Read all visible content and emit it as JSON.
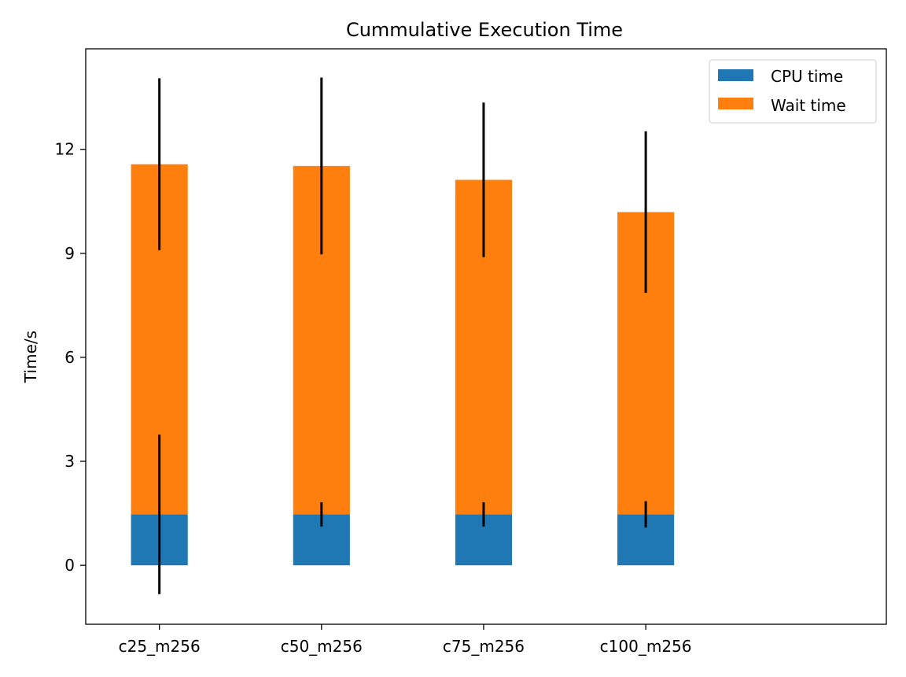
{
  "chart_data": {
    "type": "bar",
    "stacked": true,
    "title": "Cummulative Execution Time",
    "xlabel": "",
    "ylabel": "Time/s",
    "categories": [
      "c25_m256",
      "c50_m256",
      "c75_m256",
      "c100_m256"
    ],
    "ylim": [
      -1.7,
      14.9
    ],
    "yticks": [
      "0",
      "3",
      "6",
      "9",
      "12"
    ],
    "series": [
      {
        "name": "CPU time",
        "color": "#1f77b4",
        "values": [
          1.47,
          1.47,
          1.47,
          1.47
        ],
        "error": [
          2.3,
          0.35,
          0.35,
          0.38
        ]
      },
      {
        "name": "Wait time",
        "color": "#ff7f0e",
        "values": [
          10.1,
          10.05,
          9.65,
          8.72
        ],
        "error": [
          2.48,
          2.55,
          2.23,
          2.33
        ]
      }
    ],
    "legend": {
      "position": "upper right"
    },
    "grid": false
  }
}
